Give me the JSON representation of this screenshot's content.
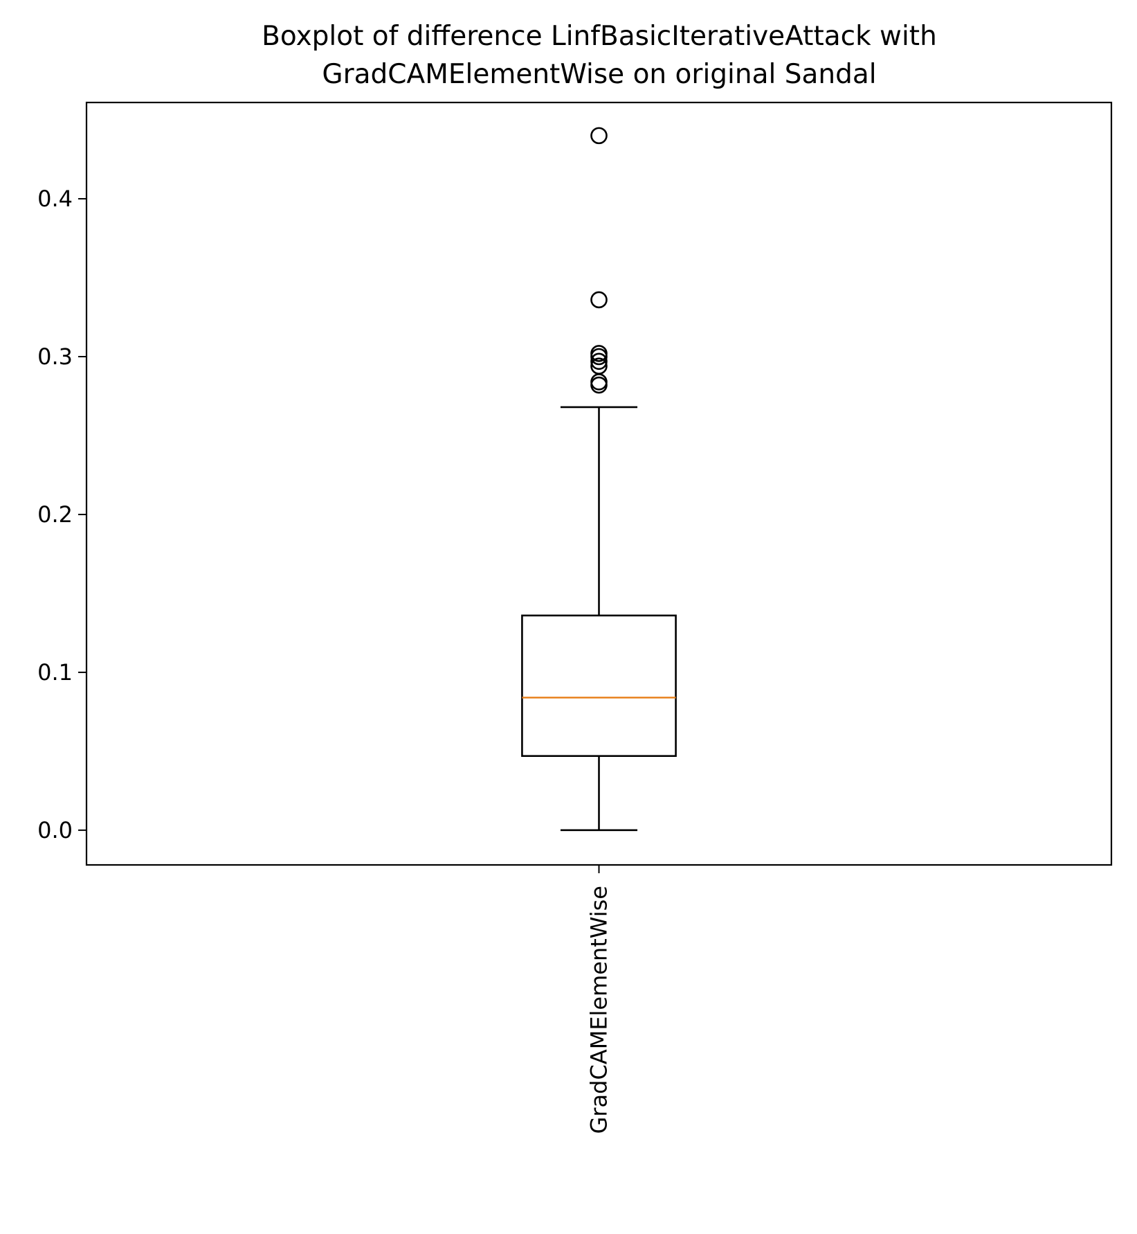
{
  "chart_data": {
    "type": "boxplot",
    "title_lines": [
      "Boxplot of difference LinfBasicIterativeAttack with",
      "GradCAMElementWise on original Sandal"
    ],
    "xlabel": "",
    "ylabel": "",
    "categories": [
      "GradCAMElementWise"
    ],
    "ylim": [
      -0.022,
      0.461
    ],
    "yticks": [
      {
        "value": 0.0,
        "label": "0.0"
      },
      {
        "value": 0.1,
        "label": "0.1"
      },
      {
        "value": 0.2,
        "label": "0.2"
      },
      {
        "value": 0.3,
        "label": "0.3"
      },
      {
        "value": 0.4,
        "label": "0.4"
      }
    ],
    "boxes": [
      {
        "category": "GradCAMElementWise",
        "whisker_low": 0.0,
        "q1": 0.047,
        "median": 0.084,
        "q3": 0.136,
        "whisker_high": 0.268,
        "outliers": [
          0.282,
          0.284,
          0.294,
          0.297,
          0.3,
          0.302,
          0.336,
          0.44
        ]
      }
    ],
    "grid": false,
    "colors": {
      "box": "#000000",
      "median": "#e8821e",
      "outlier": "#000000"
    }
  }
}
